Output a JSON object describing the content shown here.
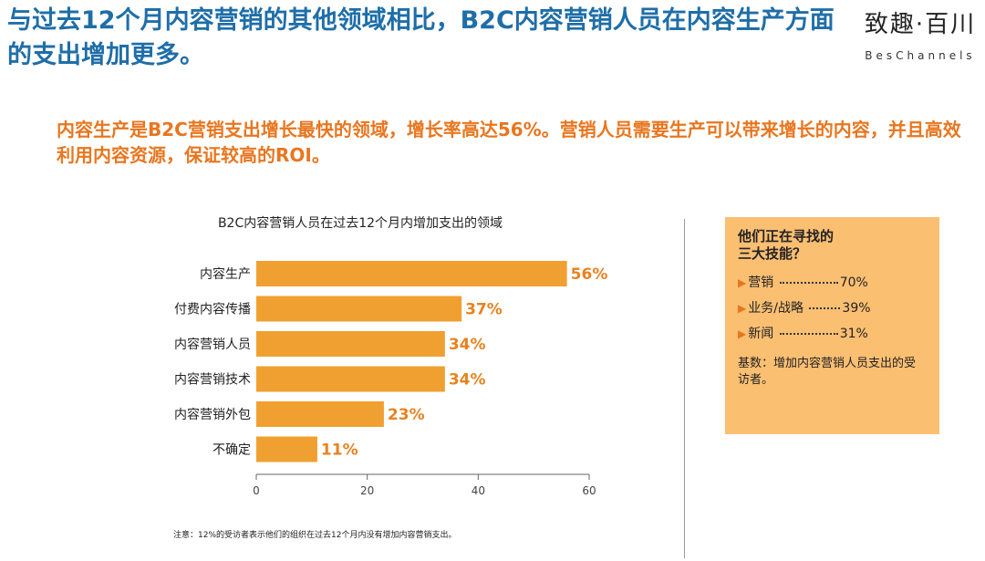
{
  "header": {
    "title": "与过去12个月内容营销的其他领域相比，B2C内容营销人员在内容生产方面的支出增加更多。",
    "logo_cn": "致趣·百川",
    "logo_en": "BesChannels"
  },
  "subtitle": "内容生产是B2C营销支出增长最快的领域，增长率高达56%。营销人员需要生产可以带来增长的内容，并且高效利用内容资源，保证较高的ROI。",
  "chart_data": {
    "type": "bar",
    "orientation": "horizontal",
    "title": "B2C内容营销人员在过去12个月内增加支出的领域",
    "categories": [
      "内容生产",
      "付费内容传播",
      "内容营销人员",
      "内容营销技术",
      "内容营销外包",
      "不确定"
    ],
    "values": [
      56,
      37,
      34,
      34,
      23,
      11
    ],
    "value_labels": [
      "56%",
      "37%",
      "34%",
      "34%",
      "23%",
      "11%"
    ],
    "xlim": [
      0,
      60
    ],
    "xticks": [
      0,
      20,
      40,
      60
    ],
    "xtick_labels": [
      "0",
      "20",
      "40",
      "60"
    ],
    "grid": false,
    "colors": {
      "bar": "#f0a030",
      "label": "#e8821f",
      "axis": "#666666"
    }
  },
  "footnote": "注意：12%的受访者表示他们的组织在过去12个月内没有增加内容营销支出。",
  "skills_box": {
    "heading_line1": "他们正在寻找的",
    "heading_line2": "三大技能？",
    "items": [
      {
        "label": "营销",
        "value": "70%"
      },
      {
        "label": "业务/战略",
        "value": "39%"
      },
      {
        "label": "新闻",
        "value": "31%"
      }
    ],
    "note": "基数：增加内容营销人员支出的受访者。",
    "bullet_icon": "triangle-right-icon"
  },
  "colors": {
    "title": "#1f6ea8",
    "subtitle": "#e8761f",
    "box_bg": "#fbbf72"
  }
}
